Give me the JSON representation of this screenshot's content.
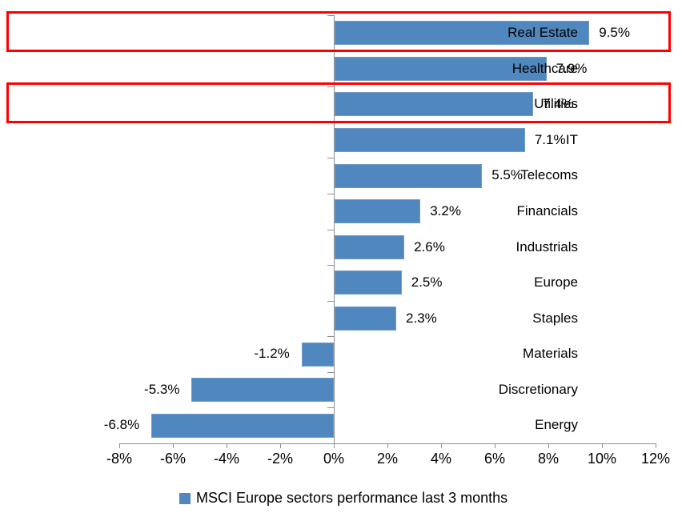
{
  "chart_data": {
    "type": "bar",
    "orientation": "horizontal",
    "title": "",
    "categories": [
      "Real Estate",
      "Healthcare",
      "Utilities",
      "IT",
      "Telecoms",
      "Financials",
      "Industrials",
      "Europe",
      "Staples",
      "Materials",
      "Discretionary",
      "Energy"
    ],
    "values": [
      9.5,
      7.9,
      7.4,
      7.1,
      5.5,
      3.2,
      2.6,
      2.5,
      2.3,
      -1.2,
      -5.3,
      -6.8
    ],
    "value_labels": [
      "9.5%",
      "7.9%",
      "7.4%",
      "7.1%",
      "5.5%",
      "3.2%",
      "2.6%",
      "2.5%",
      "2.3%",
      "-1.2%",
      "-5.3%",
      "-6.8%"
    ],
    "xlim": [
      -8,
      12
    ],
    "x_tick_values": [
      -8,
      -6,
      -4,
      -2,
      0,
      2,
      4,
      6,
      8,
      10,
      12
    ],
    "x_tick_labels": [
      "-8%",
      "-6%",
      "-4%",
      "-2%",
      "0%",
      "2%",
      "4%",
      "6%",
      "8%",
      "10%",
      "12%"
    ],
    "xlabel": "",
    "ylabel": "",
    "grid": false,
    "legend": "MSCI Europe sectors performance last 3 months",
    "legend_position": "bottom-center",
    "bar_color": "#5087BE",
    "axis_color": "#8e8e8e",
    "text_color": "#000000",
    "highlight_color": "#FE0000",
    "highlighted_categories": [
      "Real Estate",
      "Utilities"
    ]
  }
}
